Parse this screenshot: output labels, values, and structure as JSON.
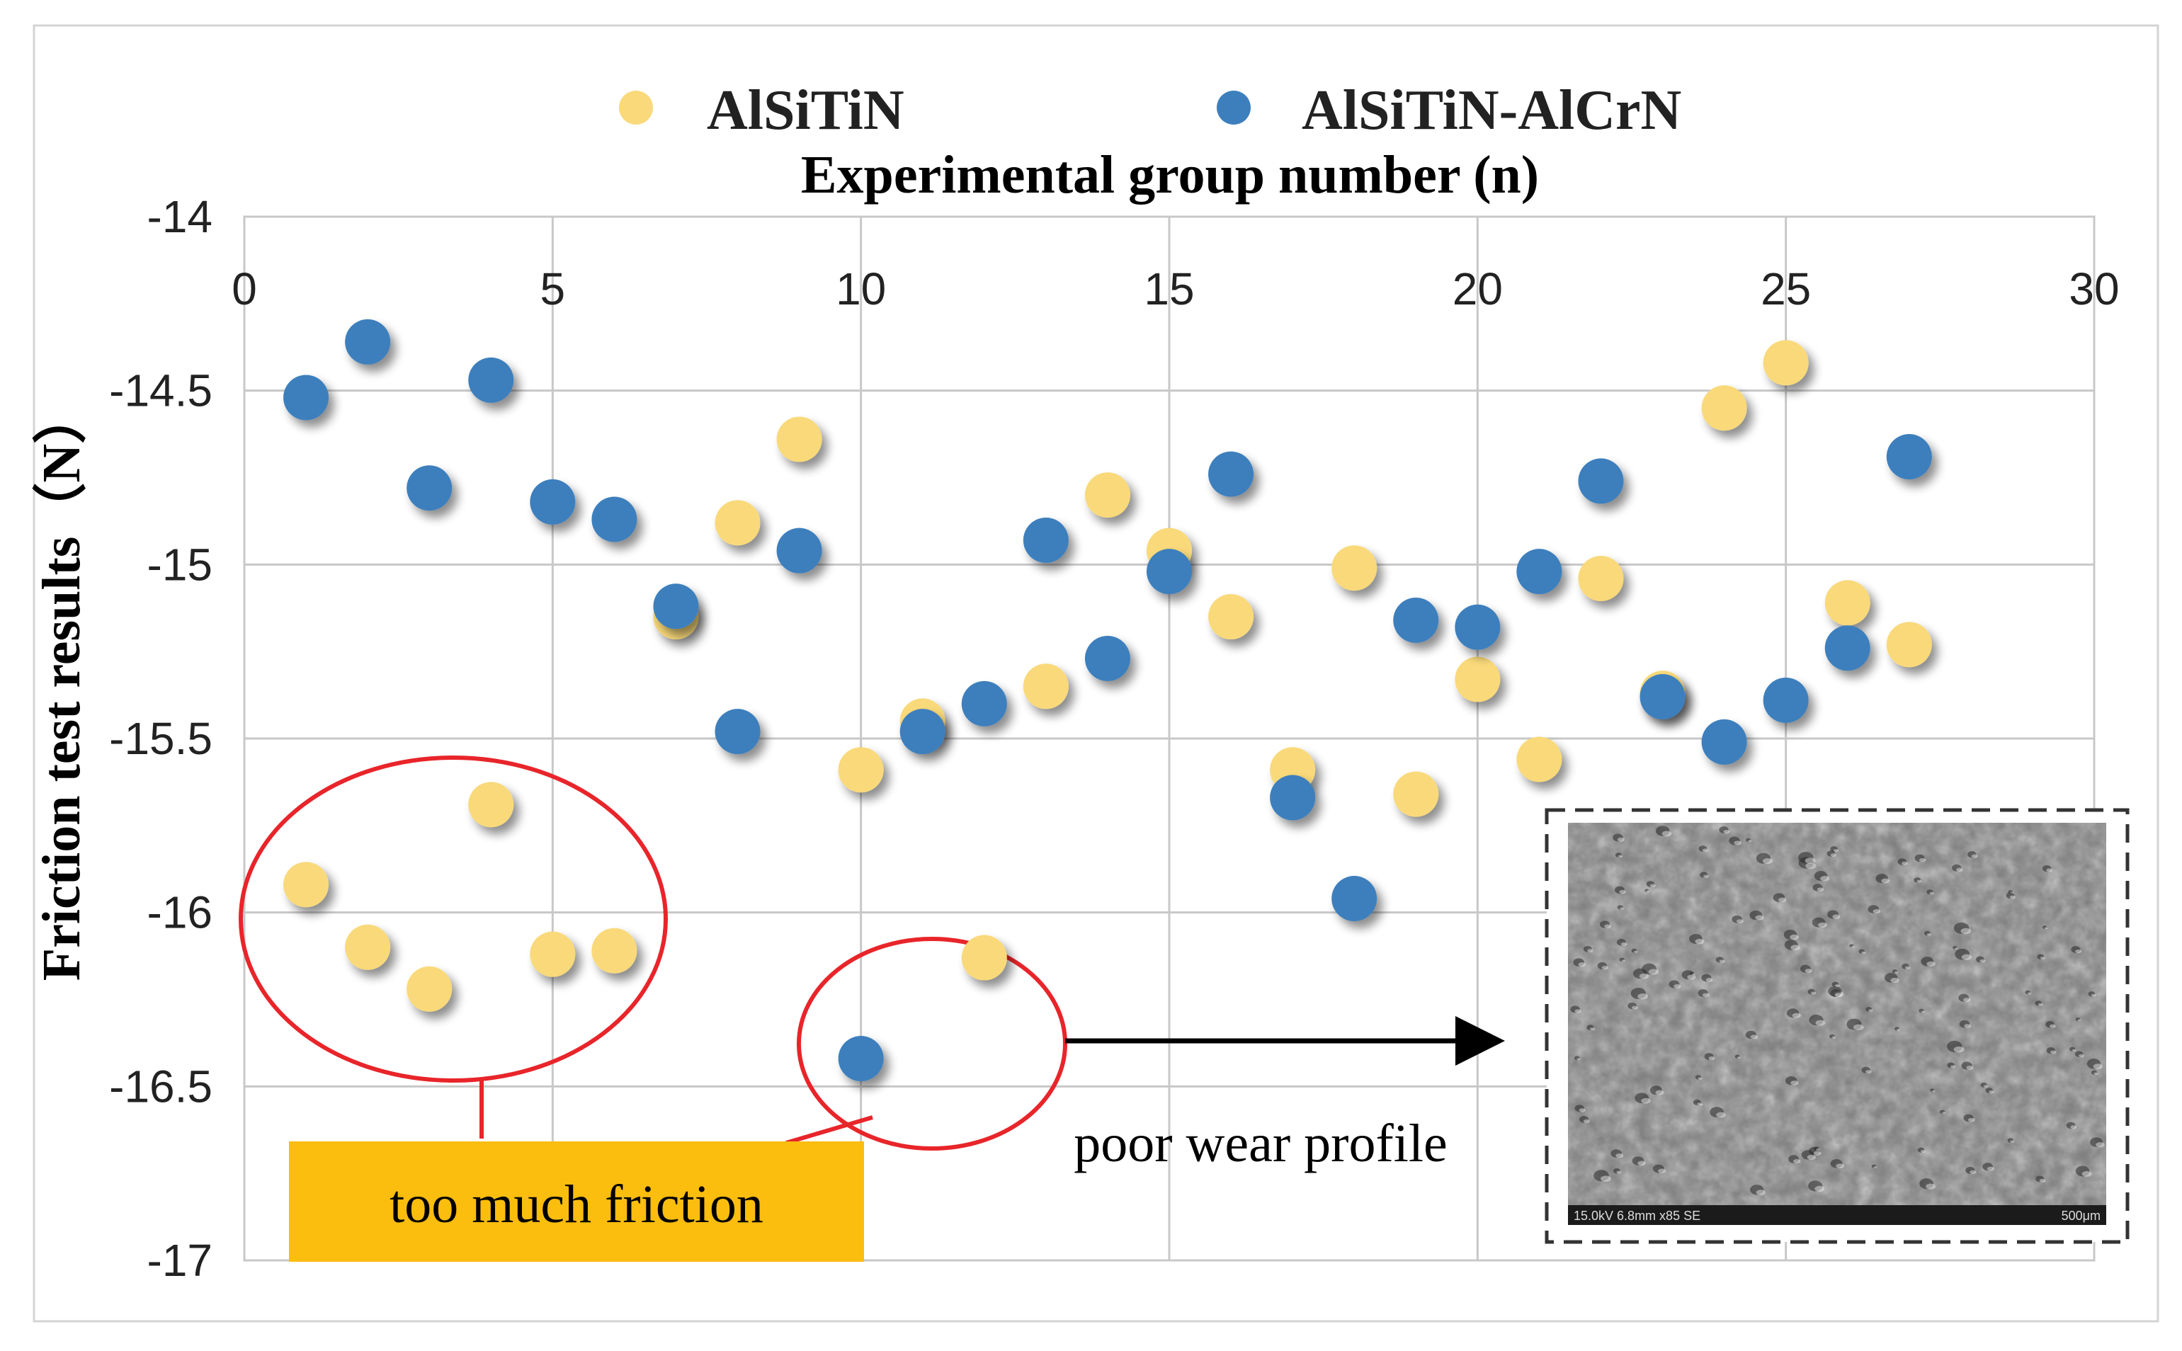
{
  "chart_data": {
    "type": "scatter",
    "xlabel": "Experimental group number (n)",
    "ylabel": "Friction test results（N）",
    "xlim": [
      0,
      30
    ],
    "ylim": [
      -17,
      -14
    ],
    "x_ticks": [
      "0",
      "5",
      "10",
      "15",
      "20",
      "25",
      "30"
    ],
    "y_ticks": [
      "-14",
      "-14.5",
      "-15",
      "-15.5",
      "-16",
      "-16.5",
      "-17"
    ],
    "x_axis_position": "top",
    "grid": true,
    "legend_position": "top",
    "series": [
      {
        "name": "AlSiTiN",
        "color": "#f9d97a",
        "points": [
          [
            1,
            -15.92
          ],
          [
            2,
            -16.1
          ],
          [
            3,
            -16.22
          ],
          [
            4,
            -15.69
          ],
          [
            5,
            -16.12
          ],
          [
            6,
            -16.11
          ],
          [
            7,
            -15.15
          ],
          [
            8,
            -14.88
          ],
          [
            9,
            -14.64
          ],
          [
            10,
            -15.59
          ],
          [
            11,
            -15.45
          ],
          [
            12,
            -16.13
          ],
          [
            13,
            -15.35
          ],
          [
            14,
            -14.8
          ],
          [
            15,
            -14.96
          ],
          [
            16,
            -15.15
          ],
          [
            17,
            -15.59
          ],
          [
            18,
            -15.01
          ],
          [
            19,
            -15.66
          ],
          [
            20,
            -15.33
          ],
          [
            21,
            -15.56
          ],
          [
            22,
            -15.04
          ],
          [
            23,
            -15.37
          ],
          [
            24,
            -14.55
          ],
          [
            25,
            -14.42
          ],
          [
            26,
            -15.11
          ],
          [
            27,
            -15.23
          ]
        ]
      },
      {
        "name": "AlSiTiN-AlCrN",
        "color": "#3d7fbd",
        "points": [
          [
            1,
            -14.52
          ],
          [
            2,
            -14.36
          ],
          [
            3,
            -14.78
          ],
          [
            4,
            -14.47
          ],
          [
            5,
            -14.82
          ],
          [
            6,
            -14.87
          ],
          [
            7,
            -15.12
          ],
          [
            8,
            -15.48
          ],
          [
            9,
            -14.96
          ],
          [
            10,
            -16.42
          ],
          [
            11,
            -15.48
          ],
          [
            12,
            -15.4
          ],
          [
            13,
            -14.93
          ],
          [
            14,
            -15.27
          ],
          [
            15,
            -15.02
          ],
          [
            16,
            -14.74
          ],
          [
            17,
            -15.67
          ],
          [
            18,
            -15.96
          ],
          [
            19,
            -15.16
          ],
          [
            20,
            -15.18
          ],
          [
            21,
            -15.02
          ],
          [
            22,
            -14.76
          ],
          [
            23,
            -15.38
          ],
          [
            24,
            -15.51
          ],
          [
            25,
            -15.39
          ],
          [
            26,
            -15.24
          ],
          [
            27,
            -14.69
          ]
        ]
      }
    ],
    "annotations": {
      "too_much_friction": "too much friction",
      "poor_wear_profile": "poor wear profile"
    },
    "micrograph": {
      "caption_left": "15.0kV 6.8mm x85 SE",
      "caption_right": "500μm"
    }
  },
  "colors": {
    "annotation_ellipse": "#e8252a",
    "label_box": "#fbbd0e",
    "grid": "#c8c8c8"
  }
}
